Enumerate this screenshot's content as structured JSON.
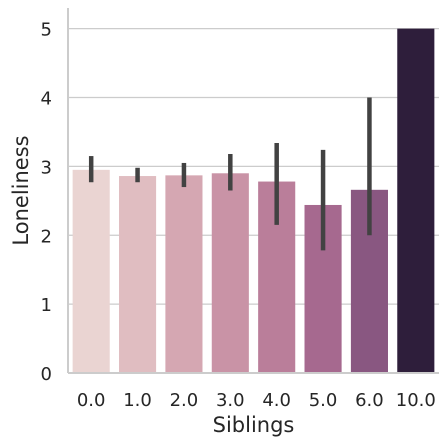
{
  "chart_data": {
    "type": "bar",
    "xlabel": "Siblings",
    "ylabel": "Loneliness",
    "categories": [
      "0.0",
      "1.0",
      "2.0",
      "3.0",
      "4.0",
      "5.0",
      "6.0",
      "10.0"
    ],
    "values": [
      2.95,
      2.86,
      2.87,
      2.9,
      2.78,
      2.44,
      2.66,
      5.0
    ],
    "error_low": [
      2.77,
      2.77,
      2.7,
      2.65,
      2.15,
      1.78,
      2.0,
      null
    ],
    "error_high": [
      3.15,
      2.98,
      3.05,
      3.18,
      3.34,
      3.24,
      4.0,
      null
    ],
    "colors": [
      "#ead4d2",
      "#e0bdc1",
      "#d5a7b2",
      "#c993a6",
      "#ba7e9a",
      "#a6698f",
      "#895781",
      "#2e1e3b"
    ],
    "ylim": [
      0,
      5.3
    ],
    "yticks": [
      0,
      1,
      2,
      3,
      4,
      5
    ],
    "grid": true
  }
}
